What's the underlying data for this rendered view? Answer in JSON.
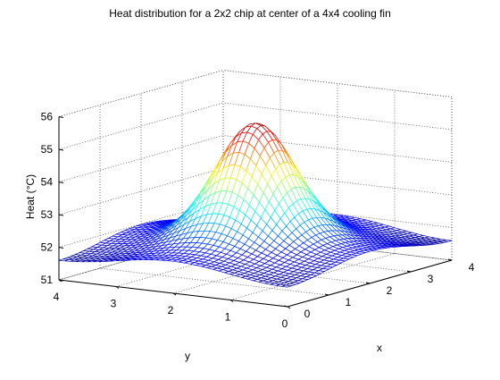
{
  "chart_data": {
    "type": "surface",
    "title": "Heat distribution for a 2x2 chip at center of a 4x4 cooling fin",
    "xlabel": "x",
    "ylabel": "y",
    "zlabel": "Heat (°C)",
    "xlim": [
      0,
      4
    ],
    "ylim": [
      0,
      4
    ],
    "zlim": [
      51,
      56
    ],
    "x_ticks": [
      "0",
      "1",
      "2",
      "3",
      "4"
    ],
    "y_ticks": [
      "0",
      "1",
      "2",
      "3",
      "4"
    ],
    "z_ticks": [
      "51",
      "52",
      "53",
      "54",
      "55",
      "56"
    ],
    "grid": true,
    "colormap": "jet",
    "surface": {
      "description_values": {
        "center_peak": 55.5,
        "edge_midpoints": 52.35,
        "corners": 51.6
      },
      "grid_points": 41
    }
  }
}
